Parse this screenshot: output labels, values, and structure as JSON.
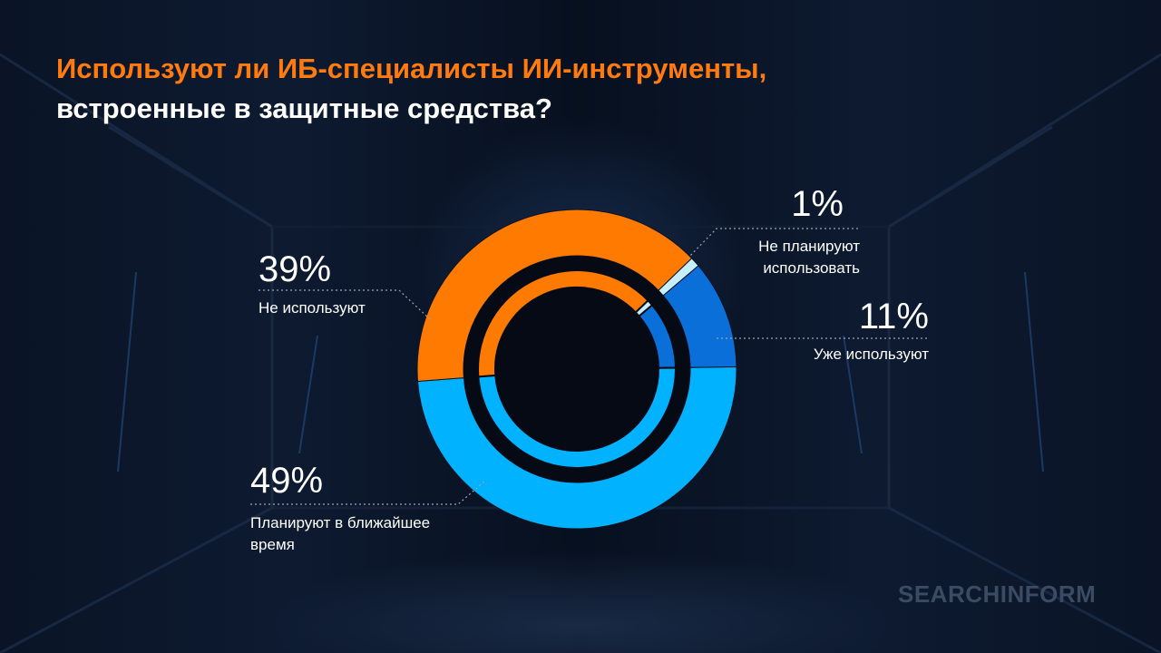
{
  "title_line1": "Используют ли ИБ-специалисты ИИ-инструменты,",
  "title_line2": "встроенные в защитные средства?",
  "logo": "SEARCHINFORM",
  "chart_data": {
    "type": "donut",
    "categories": [
      "Не планируют использовать",
      "Уже используют",
      "Планируют в ближайшее время",
      "Не используют"
    ],
    "values": [
      1,
      11,
      49,
      39
    ],
    "value_labels": [
      "1%",
      "11%",
      "49%",
      "39%"
    ],
    "colors": [
      "#c6f0ff",
      "#0a6fd8",
      "#00b2ff",
      "#ff7a00"
    ]
  }
}
